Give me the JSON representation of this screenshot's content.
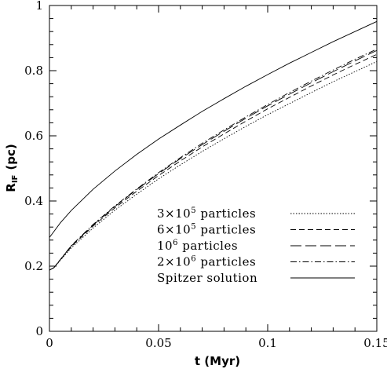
{
  "chart_data": {
    "type": "line",
    "xlabel": "t (Myr)",
    "ylabel": {
      "main": "R",
      "sub": "IF",
      "unit": "(pc)"
    },
    "xlim": [
      0,
      0.15
    ],
    "ylim": [
      0,
      1
    ],
    "x_ticks": [
      "0",
      "0.05",
      "0.1",
      "0.15"
    ],
    "y_ticks": [
      "0",
      "0.2",
      "0.4",
      "0.6",
      "0.8",
      "1"
    ],
    "legend_position": "lower-right",
    "series": [
      {
        "name": {
          "pre": "3×10",
          "sup": "5",
          "post": " particles"
        },
        "dash": "dotted",
        "x": [
          0,
          0.002,
          0.01,
          0.02,
          0.03,
          0.04,
          0.05,
          0.06,
          0.07,
          0.08,
          0.09,
          0.1,
          0.11,
          0.12,
          0.13,
          0.14,
          0.15
        ],
        "y": [
          0.188,
          0.195,
          0.256,
          0.317,
          0.372,
          0.421,
          0.468,
          0.511,
          0.552,
          0.591,
          0.629,
          0.665,
          0.699,
          0.733,
          0.766,
          0.797,
          0.828
        ]
      },
      {
        "name": {
          "pre": "6×10",
          "sup": "5",
          "post": " particles"
        },
        "dash": "dashed",
        "x": [
          0,
          0.002,
          0.01,
          0.02,
          0.03,
          0.04,
          0.05,
          0.06,
          0.07,
          0.08,
          0.09,
          0.1,
          0.11,
          0.12,
          0.13,
          0.14,
          0.15
        ],
        "y": [
          0.188,
          0.195,
          0.26,
          0.323,
          0.379,
          0.43,
          0.478,
          0.523,
          0.566,
          0.606,
          0.645,
          0.683,
          0.718,
          0.753,
          0.787,
          0.819,
          0.85
        ]
      },
      {
        "name": {
          "pre": "10",
          "sup": "6",
          "post": " particles"
        },
        "dash": "long-dashed",
        "x": [
          0,
          0.002,
          0.01,
          0.02,
          0.03,
          0.04,
          0.05,
          0.06,
          0.07,
          0.08,
          0.09,
          0.1,
          0.11,
          0.12,
          0.13,
          0.14,
          0.15
        ],
        "y": [
          0.188,
          0.195,
          0.262,
          0.326,
          0.383,
          0.435,
          0.484,
          0.53,
          0.573,
          0.614,
          0.654,
          0.692,
          0.728,
          0.763,
          0.797,
          0.83,
          0.862
        ]
      },
      {
        "name": {
          "pre": "2×10",
          "sup": "6",
          "post": " particles"
        },
        "dash": "dash-dot",
        "x": [
          0,
          0.002,
          0.01,
          0.02,
          0.03,
          0.04,
          0.05,
          0.06,
          0.07,
          0.08,
          0.09,
          0.1,
          0.11,
          0.12,
          0.13,
          0.14,
          0.15
        ],
        "y": [
          0.188,
          0.195,
          0.263,
          0.328,
          0.385,
          0.437,
          0.487,
          0.533,
          0.577,
          0.618,
          0.658,
          0.696,
          0.733,
          0.768,
          0.802,
          0.835,
          0.866
        ]
      },
      {
        "name": {
          "pre": "Spitzer solution",
          "sup": "",
          "post": ""
        },
        "dash": "solid",
        "x": [
          0,
          0.005,
          0.01,
          0.02,
          0.03,
          0.04,
          0.05,
          0.06,
          0.07,
          0.08,
          0.09,
          0.1,
          0.11,
          0.12,
          0.13,
          0.14,
          0.15
        ],
        "y": [
          0.288,
          0.333,
          0.371,
          0.436,
          0.492,
          0.543,
          0.59,
          0.633,
          0.675,
          0.714,
          0.752,
          0.788,
          0.823,
          0.856,
          0.889,
          0.92,
          0.951
        ]
      }
    ]
  }
}
